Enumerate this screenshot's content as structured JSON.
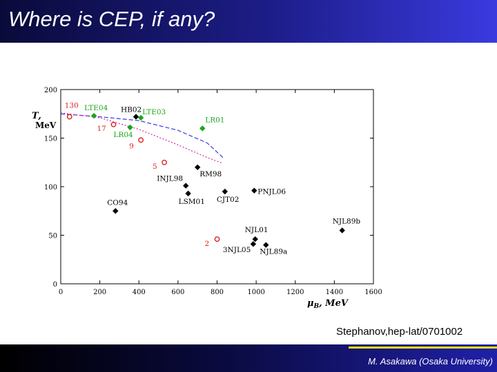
{
  "slide": {
    "title": "Where is CEP, if any?",
    "citation": "Stephanov,hep-lat/0701002",
    "footer": "M. Asakawa (Osaka University)",
    "colors": {
      "title_bar": "#1d1d8a",
      "footer_bar": "#0a0a40",
      "footer_line": "#f0e000",
      "green": "#1aa51a",
      "red": "#e02020",
      "black": "#000000"
    }
  },
  "chart_data": {
    "type": "scatter",
    "x_axis": {
      "label_symbol": "μ",
      "label_sub": "B",
      "label_unit": ", MeV",
      "range": [
        0,
        1600
      ],
      "ticks": [
        "0",
        "200",
        "400",
        "600",
        "800",
        "1000",
        "1200",
        "1400",
        "1600"
      ]
    },
    "y_axis": {
      "label_symbol": "T",
      "label_unit": "MeV",
      "range": [
        0,
        200
      ],
      "ticks": [
        "0",
        "50",
        "100",
        "150",
        "200"
      ]
    },
    "grid": false,
    "series": [
      {
        "name": "",
        "marker": "diamond-filled",
        "color": "#000000",
        "points": [
          {
            "label": "HB02",
            "x": 385,
            "y": 172
          },
          {
            "label": "RM98",
            "x": 700,
            "y": 120
          },
          {
            "label": "INJL98",
            "x": 640,
            "y": 101
          },
          {
            "label": "LSM01",
            "x": 652,
            "y": 93
          },
          {
            "label": "CJT02",
            "x": 840,
            "y": 95
          },
          {
            "label": "PNJL06",
            "x": 990,
            "y": 96
          },
          {
            "label": "CO94",
            "x": 280,
            "y": 75
          },
          {
            "label": "NJL89b",
            "x": 1440,
            "y": 55
          },
          {
            "label": "NJL01",
            "x": 995,
            "y": 46
          },
          {
            "label": "3NJL05",
            "x": 985,
            "y": 41
          },
          {
            "label": "NJL89a",
            "x": 1050,
            "y": 40
          }
        ]
      },
      {
        "name": "",
        "marker": "diamond-filled",
        "color": "#1aa51a",
        "points": [
          {
            "label": "LTE04",
            "x": 170,
            "y": 173
          },
          {
            "label": "LTE03",
            "x": 410,
            "y": 171
          },
          {
            "label": "LR01",
            "x": 725,
            "y": 160
          },
          {
            "label": "LR04",
            "x": 355,
            "y": 161
          }
        ]
      },
      {
        "name": "",
        "marker": "circle-open",
        "color": "#e02020",
        "points": [
          {
            "label": "130",
            "x": 45,
            "y": 172
          },
          {
            "label": "17",
            "x": 270,
            "y": 164
          },
          {
            "label": "9",
            "x": 410,
            "y": 148
          },
          {
            "label": "5",
            "x": 530,
            "y": 125
          },
          {
            "label": "2",
            "x": 800,
            "y": 46
          }
        ]
      }
    ],
    "curves": [
      {
        "style": "dashed",
        "color": "#3a3ae0",
        "points": [
          [
            0,
            175
          ],
          [
            200,
            172
          ],
          [
            400,
            168
          ],
          [
            600,
            158
          ],
          [
            750,
            145
          ],
          [
            830,
            130
          ]
        ]
      },
      {
        "style": "dotted",
        "color": "#d22aa0",
        "points": [
          [
            0,
            176
          ],
          [
            200,
            171
          ],
          [
            400,
            159
          ],
          [
            600,
            143
          ],
          [
            750,
            130
          ],
          [
            830,
            124
          ]
        ]
      }
    ]
  }
}
